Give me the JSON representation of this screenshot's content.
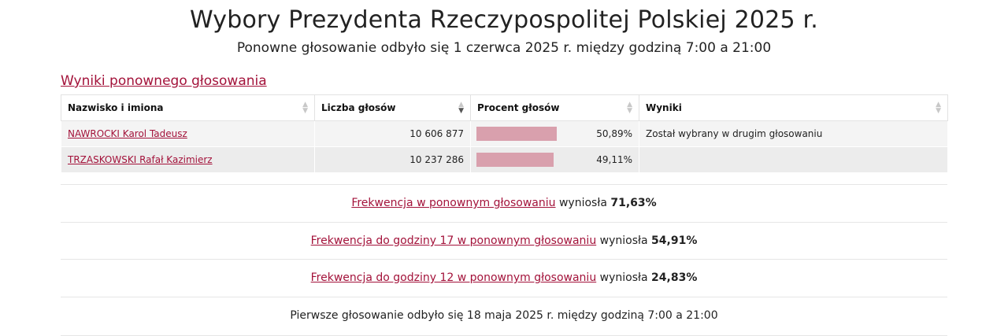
{
  "header": {
    "title": "Wybory Prezydenta Rzeczypospolitej Polskiej 2025 r.",
    "subtitle": "Ponowne głosowanie odbyło się 1 czerwca 2025 r. między godziną 7:00 a 21:00"
  },
  "results": {
    "section_link": "Wyniki ponownego głosowania",
    "columns": [
      "Nazwisko i imiona",
      "Liczba głosów",
      "Procent głosów",
      "Wyniki"
    ],
    "rows": [
      {
        "name": "NAWROCKI Karol Tadeusz",
        "votes": "10 606 877",
        "percent": "50,89%",
        "percent_value": 50.89,
        "result": "Został wybrany w drugim głosowaniu"
      },
      {
        "name": "TRZASKOWSKI Rafał Kazimierz",
        "votes": "10 237 286",
        "percent": "49,11%",
        "percent_value": 49.11,
        "result": ""
      }
    ],
    "bar_color": "#d9a0ad"
  },
  "turnout": [
    {
      "link": "Frekwencja w ponownym głosowaniu",
      "text": "wyniosła",
      "value": "71,63%"
    },
    {
      "link": "Frekwencja do godziny 17 w ponownym głosowaniu",
      "text": "wyniosła",
      "value": "54,91%"
    },
    {
      "link": "Frekwencja do godziny 12 w ponownym głosowaniu",
      "text": "wyniosła",
      "value": "24,83%"
    }
  ],
  "footer_note": "Pierwsze głosowanie odbyło się 18 maja 2025 r. między godziną 7:00 a 21:00",
  "colors": {
    "link": "#a3123a",
    "sort_icon": "#c8c8c8"
  }
}
